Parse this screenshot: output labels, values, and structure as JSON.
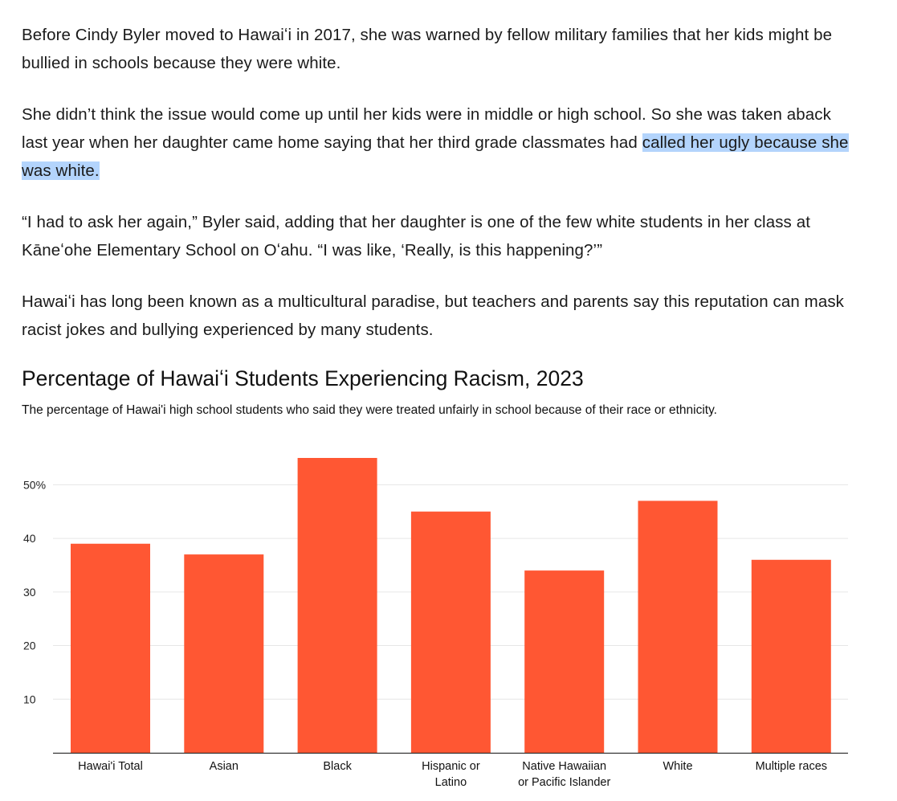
{
  "article": {
    "paragraphs": [
      {
        "text": "Before Cindy Byler moved to Hawaiʻi in 2017, she was warned by fellow military families that her kids might be bullied in schools because they were white."
      },
      {
        "text_before": "She didn’t think the issue would come up until her kids were in middle or high school. So she was taken aback last year when her daughter came home saying that her third grade classmates had ",
        "text_highlight": "called her ugly because she was white."
      },
      {
        "text": "“I had to ask her again,” Byler said, adding that her daughter is one of the few white students in her class at Kāneʻohe Elementary School on Oʻahu. “I was like, ‘Really, is this happening?’”"
      },
      {
        "text": "Hawaiʻi has long been known as a multicultural paradise, but teachers and parents say this reputation can mask racist jokes and bullying experienced by many students."
      }
    ],
    "highlight_color": "#b3d4fc"
  },
  "chart_data": {
    "type": "bar",
    "title": "Percentage of Hawaiʻi Students Experiencing Racism, 2023",
    "subtitle": "The percentage of Hawai'i high school students who said they were treated unfairly in school because of their race or ethnicity.",
    "categories": [
      [
        "Hawai'i Total"
      ],
      [
        "Asian"
      ],
      [
        "Black"
      ],
      [
        "Hispanic or",
        "Latino"
      ],
      [
        "Native Hawaiian",
        "or Pacific Islander"
      ],
      [
        "White"
      ],
      [
        "Multiple races"
      ]
    ],
    "values": [
      39,
      37,
      55,
      45,
      34,
      47,
      36
    ],
    "unit": "%",
    "ylim": [
      0,
      55
    ],
    "yticks": [
      10,
      20,
      30,
      40,
      50
    ],
    "ytick_labels": [
      "10",
      "20",
      "30",
      "40",
      "50%"
    ],
    "grid": true,
    "xlabel": "",
    "ylabel": "",
    "bar_color": "#ff5733",
    "grid_color": "#e6e6e6",
    "axis_color": "#333333"
  }
}
